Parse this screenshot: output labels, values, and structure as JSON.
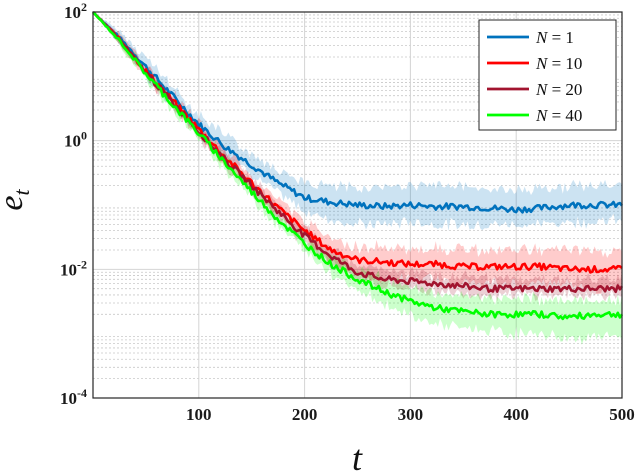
{
  "chart_data": {
    "type": "line",
    "xlabel": "t",
    "ylabel": "e",
    "ylabel_sub": "t",
    "xlim": [
      0,
      500
    ],
    "ylim": [
      0.0001,
      100
    ],
    "yscale": "log",
    "grid": true,
    "legend_position": "top-right",
    "x_ticks": [
      100,
      200,
      300,
      400,
      500
    ],
    "x_tick_labels": [
      "100",
      "200",
      "300",
      "400",
      "500"
    ],
    "y_ticks": [
      {
        "value": 100,
        "base": "10",
        "exp": "2"
      },
      {
        "value": 1,
        "base": "10",
        "exp": "0"
      },
      {
        "value": 0.01,
        "base": "10",
        "exp": "-2"
      },
      {
        "value": 0.0001,
        "base": "10",
        "exp": "-4"
      }
    ],
    "series": [
      {
        "name": "N = 1",
        "label_var": "N",
        "label_op": " = ",
        "label_num": "1",
        "color": "#0072BD",
        "x": [
          0,
          25,
          50,
          75,
          100,
          125,
          150,
          175,
          200,
          225,
          250,
          275,
          300,
          325,
          350,
          375,
          400,
          425,
          450,
          475,
          500
        ],
        "y": [
          100,
          40,
          14,
          5,
          1.8,
          0.8,
          0.42,
          0.22,
          0.13,
          0.11,
          0.1,
          0.095,
          0.1,
          0.095,
          0.095,
          0.09,
          0.085,
          0.09,
          0.1,
          0.1,
          0.1
        ],
        "lower": [
          100,
          32,
          10,
          3.5,
          1.3,
          0.6,
          0.3,
          0.15,
          0.08,
          0.06,
          0.05,
          0.05,
          0.055,
          0.05,
          0.05,
          0.05,
          0.05,
          0.05,
          0.055,
          0.055,
          0.06
        ],
        "upper": [
          100,
          50,
          20,
          7,
          2.6,
          1.2,
          0.65,
          0.35,
          0.22,
          0.2,
          0.18,
          0.2,
          0.2,
          0.2,
          0.2,
          0.18,
          0.17,
          0.18,
          0.2,
          0.2,
          0.2
        ]
      },
      {
        "name": "N = 10",
        "label_var": "N",
        "label_op": " = ",
        "label_num": "10",
        "color": "#FF0000",
        "x": [
          0,
          25,
          50,
          75,
          100,
          125,
          150,
          175,
          200,
          225,
          250,
          275,
          300,
          325,
          350,
          375,
          400,
          425,
          450,
          475,
          500
        ],
        "y": [
          100,
          38,
          12,
          4.2,
          1.5,
          0.55,
          0.22,
          0.09,
          0.04,
          0.02,
          0.014,
          0.013,
          0.012,
          0.012,
          0.011,
          0.011,
          0.011,
          0.011,
          0.01,
          0.01,
          0.01
        ],
        "lower": [
          100,
          32,
          10,
          3.4,
          1.2,
          0.45,
          0.17,
          0.07,
          0.03,
          0.014,
          0.008,
          0.007,
          0.007,
          0.007,
          0.006,
          0.006,
          0.006,
          0.006,
          0.006,
          0.005,
          0.005
        ],
        "upper": [
          100,
          46,
          15,
          5.2,
          1.9,
          0.7,
          0.28,
          0.12,
          0.055,
          0.03,
          0.022,
          0.022,
          0.021,
          0.021,
          0.02,
          0.02,
          0.02,
          0.02,
          0.02,
          0.019,
          0.018
        ]
      },
      {
        "name": "N = 20",
        "label_var": "N",
        "label_op": " = ",
        "label_num": "20",
        "color": "#A2142F",
        "x": [
          0,
          25,
          50,
          75,
          100,
          125,
          150,
          175,
          200,
          225,
          250,
          275,
          300,
          325,
          350,
          375,
          400,
          425,
          450,
          475,
          500
        ],
        "y": [
          100,
          37,
          11.5,
          4,
          1.4,
          0.5,
          0.2,
          0.08,
          0.033,
          0.016,
          0.009,
          0.007,
          0.0065,
          0.006,
          0.0055,
          0.005,
          0.005,
          0.005,
          0.005,
          0.005,
          0.005
        ],
        "lower": [
          100,
          32,
          10,
          3.4,
          1.2,
          0.42,
          0.16,
          0.065,
          0.026,
          0.012,
          0.007,
          0.0055,
          0.005,
          0.0045,
          0.0042,
          0.004,
          0.004,
          0.004,
          0.004,
          0.004,
          0.004
        ],
        "upper": [
          100,
          43,
          13.5,
          4.7,
          1.65,
          0.6,
          0.24,
          0.1,
          0.042,
          0.021,
          0.012,
          0.0095,
          0.0088,
          0.0082,
          0.0075,
          0.007,
          0.007,
          0.007,
          0.007,
          0.0068,
          0.0068
        ]
      },
      {
        "name": "N = 40",
        "label_var": "N",
        "label_op": " = ",
        "label_num": "40",
        "color": "#00FF00",
        "x": [
          0,
          25,
          50,
          75,
          100,
          125,
          150,
          175,
          200,
          225,
          250,
          275,
          300,
          325,
          350,
          375,
          400,
          425,
          450,
          475,
          500
        ],
        "y": [
          100,
          36,
          11,
          3.7,
          1.3,
          0.45,
          0.16,
          0.06,
          0.025,
          0.012,
          0.007,
          0.0045,
          0.0032,
          0.0025,
          0.0022,
          0.002,
          0.002,
          0.002,
          0.0018,
          0.002,
          0.002
        ],
        "lower": [
          100,
          30,
          9,
          3,
          1.05,
          0.36,
          0.13,
          0.048,
          0.019,
          0.009,
          0.0048,
          0.003,
          0.0019,
          0.0014,
          0.0012,
          0.0011,
          0.001,
          0.001,
          0.0008,
          0.0009,
          0.0009
        ],
        "upper": [
          100,
          42,
          13,
          4.4,
          1.55,
          0.55,
          0.2,
          0.075,
          0.032,
          0.016,
          0.01,
          0.0068,
          0.0052,
          0.0042,
          0.0038,
          0.0036,
          0.0036,
          0.0034,
          0.0033,
          0.0034,
          0.0035
        ]
      }
    ]
  }
}
